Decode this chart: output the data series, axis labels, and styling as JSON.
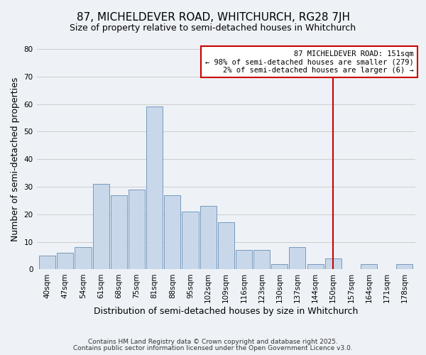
{
  "title": "87, MICHELDEVER ROAD, WHITCHURCH, RG28 7JH",
  "subtitle": "Size of property relative to semi-detached houses in Whitchurch",
  "xlabel": "Distribution of semi-detached houses by size in Whitchurch",
  "ylabel": "Number of semi-detached properties",
  "bar_labels": [
    "40sqm",
    "47sqm",
    "54sqm",
    "61sqm",
    "68sqm",
    "75sqm",
    "81sqm",
    "88sqm",
    "95sqm",
    "102sqm",
    "109sqm",
    "116sqm",
    "123sqm",
    "130sqm",
    "137sqm",
    "144sqm",
    "150sqm",
    "157sqm",
    "164sqm",
    "171sqm",
    "178sqm"
  ],
  "bar_values": [
    5,
    6,
    8,
    31,
    27,
    29,
    59,
    27,
    21,
    23,
    17,
    7,
    7,
    2,
    8,
    2,
    4,
    0,
    2,
    0,
    2
  ],
  "bar_color": "#c8d8ea",
  "bar_edge_color": "#7799bb",
  "vline_x_idx": 16,
  "vline_color": "#cc0000",
  "annotation_title": "87 MICHELDEVER ROAD: 151sqm",
  "annotation_line1": "← 98% of semi-detached houses are smaller (279)",
  "annotation_line2": "2% of semi-detached houses are larger (6) →",
  "annotation_box_color": "#ffffff",
  "annotation_border_color": "#cc0000",
  "ylim": [
    0,
    80
  ],
  "yticks": [
    0,
    10,
    20,
    30,
    40,
    50,
    60,
    70,
    80
  ],
  "grid_color": "#cccccc",
  "background_color": "#eef2f7",
  "footer1": "Contains HM Land Registry data © Crown copyright and database right 2025.",
  "footer2": "Contains public sector information licensed under the Open Government Licence v3.0.",
  "title_fontsize": 11,
  "subtitle_fontsize": 9,
  "axis_label_fontsize": 9,
  "tick_fontsize": 7.5,
  "footer_fontsize": 6.5,
  "annotation_fontsize": 7.5
}
